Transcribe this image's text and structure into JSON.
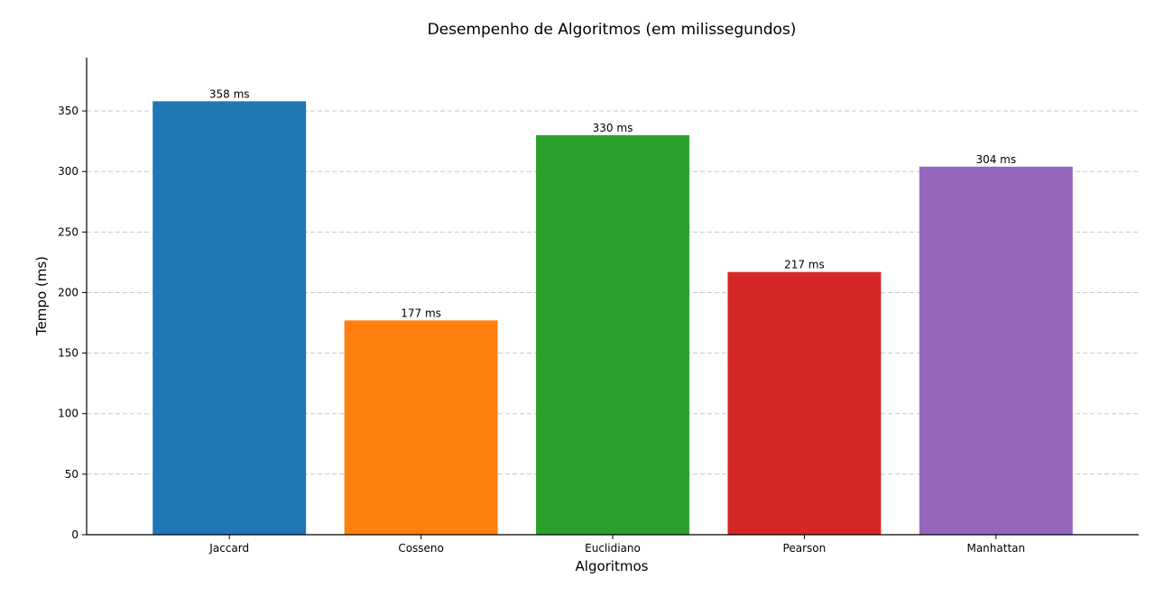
{
  "chart_data": {
    "type": "bar",
    "title": "Desempenho de Algoritmos (em milissegundos)",
    "xlabel": "Algoritmos",
    "ylabel": "Tempo (ms)",
    "categories": [
      "Jaccard",
      "Cosseno",
      "Euclidiano",
      "Pearson",
      "Manhattan"
    ],
    "values": [
      358,
      177,
      330,
      217,
      304
    ],
    "data_labels": [
      "358 ms",
      "177 ms",
      "330 ms",
      "217 ms",
      "304 ms"
    ],
    "colors": [
      "#1f77b4",
      "#ff7f0e",
      "#2ca02c",
      "#d62728",
      "#9467bd"
    ],
    "ylim": [
      0,
      394
    ],
    "yticks": [
      0,
      50,
      100,
      150,
      200,
      250,
      300,
      350
    ],
    "grid": "y-dashed",
    "legend": "none"
  }
}
